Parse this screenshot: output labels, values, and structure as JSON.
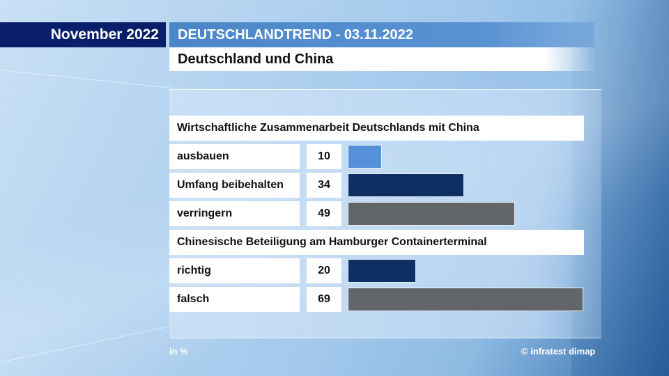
{
  "header": {
    "date": "November 2022",
    "trend": "DEUTSCHLANDTREND - 03.11.2022",
    "subtitle": "Deutschland und China"
  },
  "chart_data": {
    "type": "bar",
    "unit": "in %",
    "groups": [
      {
        "question": "Wirtschaftliche Zusammenarbeit Deutschlands mit China",
        "items": [
          {
            "label": "ausbauen",
            "value": 10,
            "color": "#5590d9"
          },
          {
            "label": "Umfang beibehalten",
            "value": 34,
            "color": "#0d2f63"
          },
          {
            "label": "verringern",
            "value": 49,
            "color": "#62666a"
          }
        ]
      },
      {
        "question": "Chinesische Beteiligung am Hamburger Containerterminal",
        "items": [
          {
            "label": "richtig",
            "value": 20,
            "color": "#0d2f63"
          },
          {
            "label": "falsch",
            "value": 69,
            "color": "#62666a"
          }
        ]
      }
    ]
  },
  "footer": {
    "unit_note": "in %",
    "source": "© infratest dimap"
  }
}
